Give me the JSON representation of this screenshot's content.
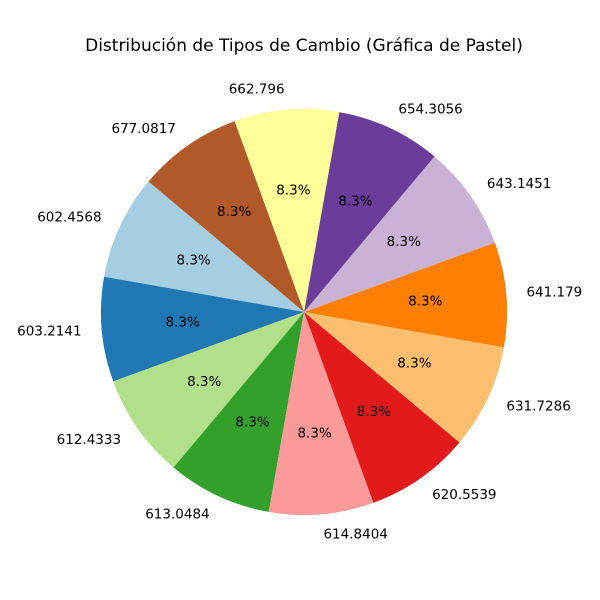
{
  "chart_data": {
    "type": "pie",
    "title": "Distribución de Tipos de Cambio (Gráfica de Pastel)",
    "slices": [
      {
        "label": "602.4568",
        "value": 8.3,
        "pct_label": "8.3%",
        "color": "#a6cee3"
      },
      {
        "label": "603.2141",
        "value": 8.3,
        "pct_label": "8.3%",
        "color": "#1f78b4"
      },
      {
        "label": "612.4333",
        "value": 8.3,
        "pct_label": "8.3%",
        "color": "#b2df8a"
      },
      {
        "label": "613.0484",
        "value": 8.3,
        "pct_label": "8.3%",
        "color": "#33a02c"
      },
      {
        "label": "614.8404",
        "value": 8.3,
        "pct_label": "8.3%",
        "color": "#fb9a99"
      },
      {
        "label": "620.5539",
        "value": 8.3,
        "pct_label": "8.3%",
        "color": "#e31a1c"
      },
      {
        "label": "631.7286",
        "value": 8.3,
        "pct_label": "8.3%",
        "color": "#fdbf6f"
      },
      {
        "label": "641.179",
        "value": 8.3,
        "pct_label": "8.3%",
        "color": "#ff7f00"
      },
      {
        "label": "643.1451",
        "value": 8.3,
        "pct_label": "8.3%",
        "color": "#cab2d6"
      },
      {
        "label": "654.3056",
        "value": 8.3,
        "pct_label": "8.3%",
        "color": "#6a3d9a"
      },
      {
        "label": "662.796",
        "value": 8.3,
        "pct_label": "8.3%",
        "color": "#ffff99"
      },
      {
        "label": "677.0817",
        "value": 8.3,
        "pct_label": "8.3%",
        "color": "#b15928"
      }
    ],
    "start_angle_deg": 140,
    "direction": "counterclockwise",
    "legend": "none"
  }
}
